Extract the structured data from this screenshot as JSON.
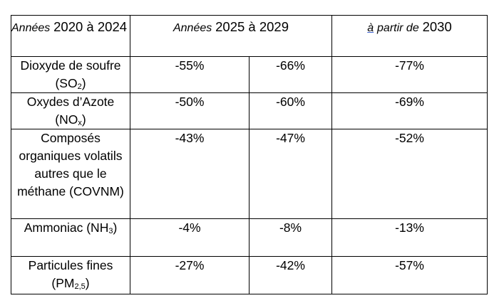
{
  "header": {
    "col1_prefix": "Années",
    "col1_range": "2020 à 2024",
    "col2_prefix": "Années",
    "col2_range": "2025 à 2029",
    "col3_a": "à",
    "col3_mid": "partir de",
    "col3_year": "2030"
  },
  "rows": [
    {
      "name": "Dioxyde de soufre (SO",
      "sub": "2",
      "close": ")",
      "v1": "-55%",
      "v2": "-66%",
      "v3": "-77%"
    },
    {
      "name": "Oxydes d’Azote (NO",
      "sub": "x",
      "close": ")",
      "v1": "-50%",
      "v2": "-60%",
      "v3": "-69%"
    },
    {
      "name": "Composés organiques volatils autres que le méthane (COVNM)",
      "sub": "",
      "close": "",
      "v1": "-43%",
      "v2": "-47%",
      "v3": "-52%"
    },
    {
      "name": "Ammoniac (NH",
      "sub": "3",
      "close": ")",
      "v1": "-4%",
      "v2": "-8%",
      "v3": "-13%"
    },
    {
      "name": "Particules fines (PM",
      "sub": "2,5",
      "close": ")",
      "v1": "-27%",
      "v2": "-42%",
      "v3": "-57%"
    }
  ]
}
